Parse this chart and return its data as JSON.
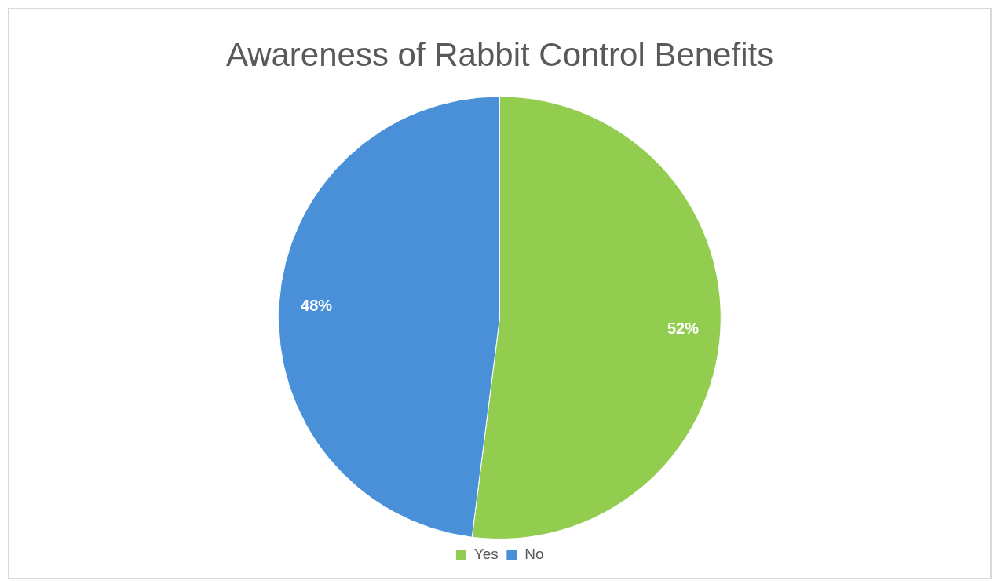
{
  "chart_data": {
    "type": "pie",
    "title": "Awareness of Rabbit Control Benefits",
    "categories": [
      "Yes",
      "No"
    ],
    "values": [
      52,
      48
    ],
    "colors": [
      "#92cd50",
      "#4a90d9"
    ],
    "value_labels": [
      "52%",
      "48%"
    ],
    "legend": "bottom"
  }
}
